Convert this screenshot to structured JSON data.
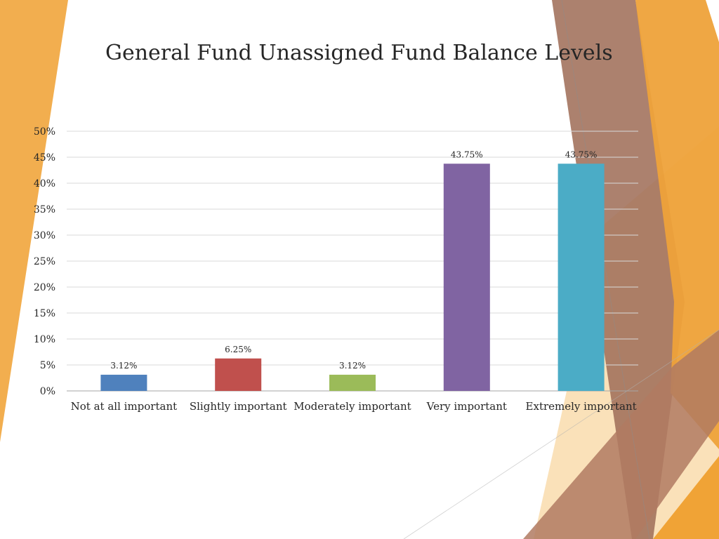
{
  "chart_data": {
    "type": "bar",
    "title": "General Fund Unassigned Fund Balance Levels",
    "categories": [
      "Not at all important",
      "Slightly important",
      "Moderately important",
      "Very important",
      "Extremely important"
    ],
    "values": [
      3.12,
      6.25,
      3.12,
      43.75,
      43.75
    ],
    "data_labels": [
      "3.12%",
      "6.25%",
      "3.12%",
      "43.75%",
      "43.75%"
    ],
    "colors": [
      "#4f81bd",
      "#c0504d",
      "#9bbb59",
      "#8064a2",
      "#4bacc6"
    ],
    "ylim": [
      0,
      50
    ],
    "y_ticks": [
      0,
      5,
      10,
      15,
      20,
      25,
      30,
      35,
      40,
      45,
      50
    ],
    "y_tick_labels": [
      "0%",
      "5%",
      "10%",
      "15%",
      "20%",
      "25%",
      "30%",
      "35%",
      "40%",
      "45%",
      "50%"
    ],
    "grid": true,
    "legend": "none"
  },
  "theme": {
    "accent_orange": "#f0a030",
    "accent_brown": "#a0705a"
  }
}
